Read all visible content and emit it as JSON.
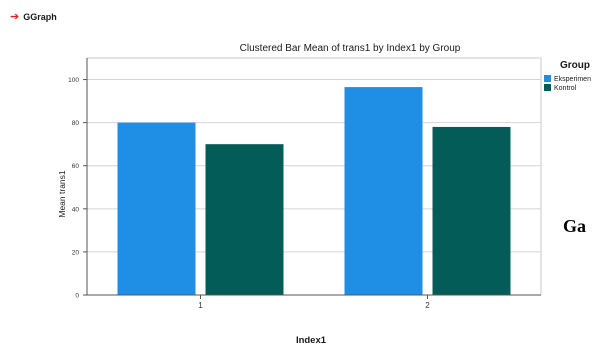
{
  "header": {
    "label": "GGraph",
    "icon": "arrow-right-icon",
    "icon_color": "#e2231a"
  },
  "side_text": "Ga",
  "chart_data": {
    "type": "bar",
    "title": "Clustered Bar Mean of trans1 by Index1 by Group",
    "xlabel": "Index1",
    "ylabel": "Mean trans1",
    "categories": [
      "1",
      "2"
    ],
    "series": [
      {
        "name": "Eksperimen",
        "values": [
          80,
          96.5
        ],
        "color": "#1f8fe6"
      },
      {
        "name": "Kontrol",
        "values": [
          70,
          78
        ],
        "color": "#045c58"
      }
    ],
    "ylim": [
      0,
      110
    ],
    "yticks": [
      "0",
      "20",
      "40",
      "60",
      "80",
      "100"
    ],
    "legend": {
      "title": "Group",
      "placement": "top-right"
    },
    "grid": true
  }
}
